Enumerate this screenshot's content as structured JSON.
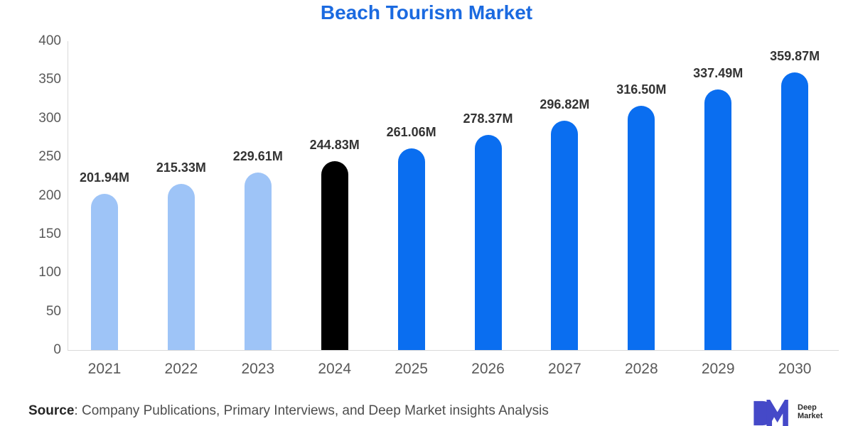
{
  "title": "Beach Tourism Market",
  "title_color": "#1b6ae0",
  "source": {
    "label": "Source",
    "text": ": Company Publications, Primary Interviews, and Deep Market insights Analysis"
  },
  "logo": {
    "name": "Deep Market insights",
    "line1": "Deep",
    "line2": "Market",
    "mark_color": "#4549c8"
  },
  "chart_data": {
    "type": "bar",
    "title": "Beach Tourism Market",
    "xlabel": "",
    "ylabel": "",
    "categories": [
      "2021",
      "2022",
      "2023",
      "2024",
      "2025",
      "2026",
      "2027",
      "2028",
      "2029",
      "2030"
    ],
    "values": [
      201.94,
      215.33,
      229.61,
      244.83,
      261.06,
      278.37,
      296.82,
      316.5,
      337.49,
      359.87
    ],
    "value_labels": [
      "201.94M",
      "215.33M",
      "229.61M",
      "244.83M",
      "261.06M",
      "278.37M",
      "296.82M",
      "316.50M",
      "337.49M",
      "359.87M"
    ],
    "unit": "M",
    "ylim": [
      0,
      400
    ],
    "yticks": [
      "0",
      "50",
      "100",
      "150",
      "200",
      "250",
      "300",
      "350",
      "400"
    ],
    "gridlines": false,
    "legend": "none",
    "bar_colors": [
      "#9ec4f7",
      "#9ec4f7",
      "#9ec4f7",
      "#000000",
      "#0a6ef0",
      "#0a6ef0",
      "#0a6ef0",
      "#0a6ef0",
      "#0a6ef0",
      "#0a6ef0"
    ],
    "color_meaning": {
      "historical": "#9ec4f7",
      "base_year": "#000000",
      "forecast": "#0a6ef0"
    }
  }
}
